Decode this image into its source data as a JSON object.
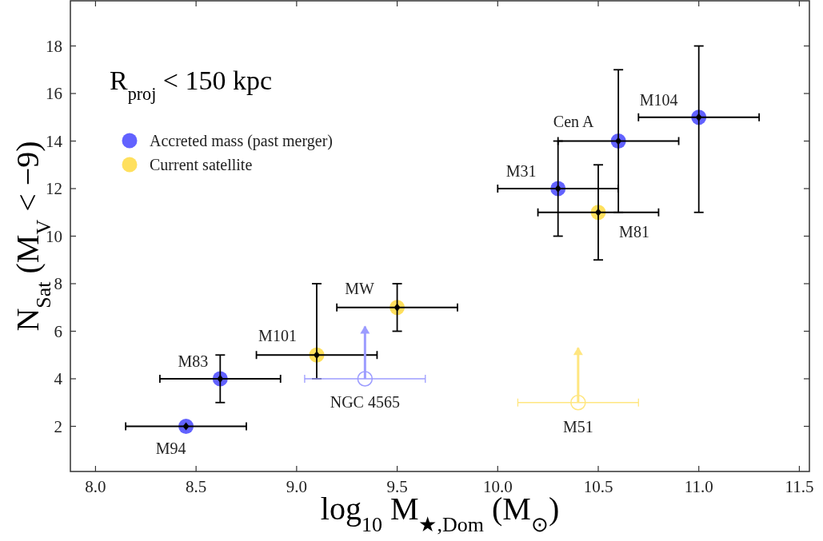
{
  "chart_data": {
    "type": "scatter",
    "xlabel": "log$_{10}$ M$_{★,Dom}$ (M$_{⊙}$)",
    "ylabel": "N$_{Sat}$ (M$_{V}$ < −9)",
    "xlim": [
      7.875,
      11.55
    ],
    "ylim": [
      0.1,
      19.9
    ],
    "xticks": [
      {
        "value": 8,
        "label": "8.0"
      },
      {
        "value": 8.5,
        "label": "8.5"
      },
      {
        "value": 9,
        "label": "9.0"
      },
      {
        "value": 9.5,
        "label": "9.5"
      },
      {
        "value": 10,
        "label": "10.0"
      },
      {
        "value": 10.5,
        "label": "10.5"
      },
      {
        "value": 11,
        "label": "11.0"
      },
      {
        "value": 11.5,
        "label": "11.5"
      }
    ],
    "yticks": [
      2,
      4,
      6,
      8,
      10,
      12,
      14,
      16,
      18
    ],
    "grid": false,
    "legend": "top left",
    "marker": "circle",
    "series": [
      {
        "name": "Accreted mass (past merger)",
        "color": "#6262ff",
        "x": [
          8.45,
          8.62,
          10.3,
          10.6,
          11.0
        ],
        "values": [
          2,
          4,
          12,
          14,
          15
        ],
        "errors": [
          null,
          1,
          2,
          3,
          [
            11,
            18
          ]
        ],
        "xerrors": [
          0.3,
          0.3,
          0.3,
          0.3,
          0.3
        ]
      },
      {
        "name": "Current satellite",
        "color": "#ffe05e",
        "x": [
          9.1,
          9.5,
          10.5
        ],
        "values": [
          5,
          7,
          11
        ],
        "errors": [
          [
            4,
            8
          ],
          1,
          2
        ],
        "xerrors": [
          0.3,
          0.3,
          0.3
        ]
      },
      {
        "color": "#9c9cff",
        "x": [
          9.34
        ],
        "values": [
          4
        ],
        "errors": [
          [
            4,
            6.2
          ]
        ],
        "xerrors": [
          0.3
        ]
      },
      {
        "color": "#ffe680",
        "x": [
          10.4
        ],
        "values": [
          3
        ],
        "errors": [
          [
            3,
            5.3
          ]
        ],
        "xerrors": [
          0.3
        ]
      }
    ],
    "annotations": [
      "R$_{proj}$ < 150 kpc",
      {
        "text": "M94",
        "x": 8.45,
        "y": 2
      },
      {
        "text": "M83",
        "x": 8.62,
        "y": 4
      },
      {
        "text": "M101",
        "x": 9.1,
        "y": 5
      },
      {
        "text": "MW",
        "x": 9.5,
        "y": 7
      },
      {
        "text": "NGC 4565",
        "x": 9.34,
        "y": 4
      },
      {
        "text": "M31",
        "x": 10.3,
        "y": 12
      },
      {
        "text": "Cen A",
        "x": 10.6,
        "y": 14
      },
      {
        "text": "M81",
        "x": 10.5,
        "y": 11
      },
      {
        "text": "M104",
        "x": 11.0,
        "y": 15
      },
      {
        "text": "M51",
        "x": 10.4,
        "y": 3
      }
    ]
  }
}
